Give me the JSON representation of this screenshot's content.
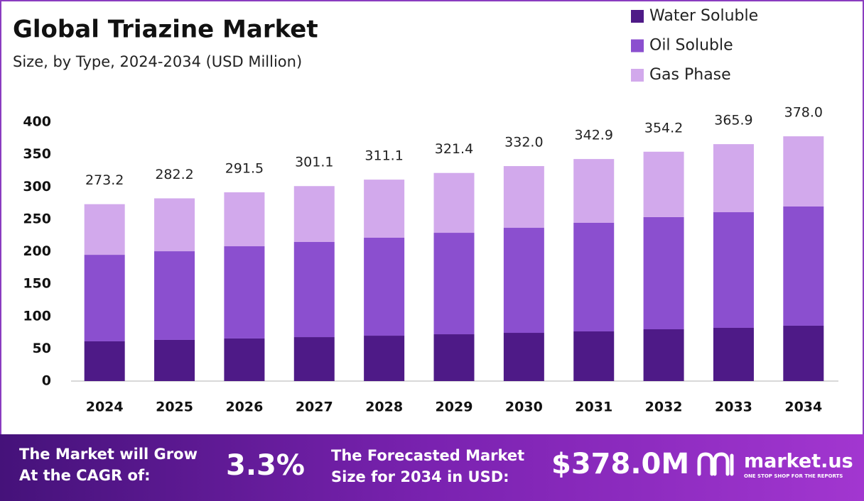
{
  "chart_data": {
    "type": "stacked-bar",
    "title": "Global Triazine Market",
    "subtitle": "Size, by Type, 2024-2034 (USD Million)",
    "categories": [
      "2024",
      "2025",
      "2026",
      "2027",
      "2028",
      "2029",
      "2030",
      "2031",
      "2032",
      "2033",
      "2034"
    ],
    "series": [
      {
        "name": "Water Soluble",
        "color": "#4e1a87",
        "values": [
          61.4,
          63.6,
          65.8,
          67.9,
          70.1,
          72.3,
          74.5,
          76.7,
          80,
          82.2,
          85.5
        ]
      },
      {
        "name": "Oil Soluble",
        "color": "#8b4fcf",
        "values": [
          133.6,
          136.9,
          142.4,
          146.9,
          151.3,
          156.7,
          162.2,
          167.7,
          173.2,
          178.6,
          184.1
        ]
      },
      {
        "name": "Gas Phase",
        "color": "#d2a9ec",
        "values": [
          78.2,
          81.7,
          83.3,
          86.3,
          89.7,
          92.4,
          95.3,
          98.5,
          101,
          105.1,
          108.4
        ]
      }
    ],
    "total_labels": [
      "273.2",
      "282.2",
      "291.5",
      "301.1",
      "311.1",
      "321.4",
      "332.0",
      "342.9",
      "354.2",
      "365.9",
      "378.0"
    ],
    "ylim": [
      0,
      400
    ],
    "yticks": [
      0,
      50,
      100,
      150,
      200,
      250,
      300,
      350,
      400
    ],
    "grid": false
  },
  "footer": {
    "cagr_label": [
      "The Market will Grow",
      "At the CAGR of:"
    ],
    "cagr_value": "3.3%",
    "forecast_label": [
      "The Forecasted Market",
      "Size for 2034 in USD:"
    ],
    "forecast_value": "$378.0M",
    "brand": "market.us",
    "tagline": "ONE STOP SHOP FOR THE REPORTS"
  }
}
